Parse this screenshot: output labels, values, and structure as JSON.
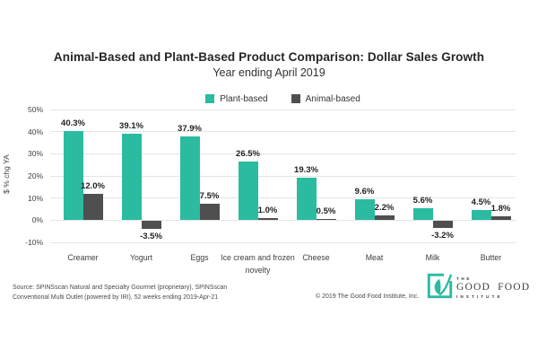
{
  "title": "Animal-Based and Plant-Based Product Comparison: Dollar Sales Growth",
  "subtitle": "Year ending April 2019",
  "colors": {
    "plant": "#2bbba1",
    "animal": "#4f4f4f",
    "gridline": "#e4e4e4",
    "label_text": "#1f1f1f"
  },
  "chart_data": {
    "type": "bar",
    "categories": [
      "Creamer",
      "Yogurt",
      "Eggs",
      "Ice cream and frozen novelty",
      "Cheese",
      "Meat",
      "Milk",
      "Butter"
    ],
    "series": [
      {
        "name": "Plant-based",
        "color": "#2bbba1",
        "values": [
          40.3,
          39.1,
          37.9,
          26.5,
          19.3,
          9.6,
          5.6,
          4.5
        ]
      },
      {
        "name": "Animal-based",
        "color": "#4f4f4f",
        "values": [
          12.0,
          -3.5,
          7.5,
          1.0,
          0.5,
          2.2,
          -3.2,
          1.8
        ]
      }
    ],
    "ylabel": "$ % chg YA",
    "yticks": [
      "50%",
      "40%",
      "30%",
      "20%",
      "10%",
      "0%",
      "-10%"
    ],
    "ytick_values": [
      50,
      40,
      30,
      20,
      10,
      0,
      -10
    ],
    "ylim": [
      -10,
      50
    ],
    "grid": true,
    "legend_position": "top",
    "data_label_format": "one-decimal-percent"
  },
  "footer": {
    "source": "Source: SPINSscan Natural and Specialty Gourmet (proprietary), SPINSscan\nConventional Multi Outlet (powered by IRI), 52 weeks ending 2019-Apr-21",
    "copyright": "© 2019 The Good Food Institute, Inc.",
    "logo": {
      "line1": "THE",
      "line2": "GOOD FOOD",
      "line3": "INSTITUTE"
    }
  }
}
